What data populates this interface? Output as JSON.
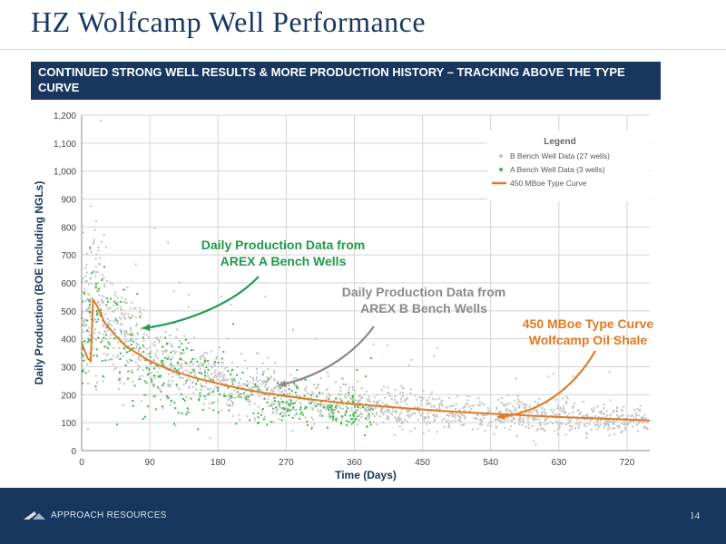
{
  "slide": {
    "title": "HZ Wolfcamp Well Performance",
    "subtitle": "CONTINUED STRONG WELL RESULTS & MORE PRODUCTION HISTORY – TRACKING ABOVE THE TYPE CURVE",
    "company": "APPROACH RESOURCES",
    "page_number": "14"
  },
  "colors": {
    "brand_navy": "#17375e",
    "b_bench": "#c3c3c3",
    "a_bench": "#3cb84a",
    "type_curve": "#e07a26",
    "label_green": "#1f9a4b",
    "label_gray": "#8a8a8a",
    "label_orange": "#e07a26"
  },
  "chart_data": {
    "type": "scatter",
    "xlabel": "Time (Days)",
    "ylabel": "Daily Production (BOE including NGLs)",
    "xlim": [
      0,
      750
    ],
    "ylim": [
      0,
      1200
    ],
    "xticks": [
      0,
      90,
      180,
      270,
      360,
      450,
      540,
      630,
      720
    ],
    "yticks": [
      0,
      100,
      200,
      300,
      400,
      500,
      600,
      700,
      800,
      900,
      1000,
      1100,
      1200
    ],
    "ytick_labels": [
      "0",
      "100",
      "200",
      "300",
      "400",
      "500",
      "600",
      "700",
      "800",
      "900",
      "1,000",
      "1,100",
      "1,200"
    ],
    "grid": true,
    "legend": {
      "title": "Legend",
      "position": "top-right",
      "items": [
        "B Bench Well Data (27 wells)",
        "A Bench Well Data (3 wells)",
        "450 MBoe Type Curve"
      ]
    },
    "series": [
      {
        "name": "B Bench Well Data (27 wells)",
        "kind": "scatter",
        "trend": [
          [
            0,
            470
          ],
          [
            15,
            560
          ],
          [
            30,
            500
          ],
          [
            60,
            400
          ],
          [
            90,
            330
          ],
          [
            120,
            290
          ],
          [
            150,
            270
          ],
          [
            180,
            250
          ],
          [
            210,
            230
          ],
          [
            240,
            215
          ],
          [
            270,
            200
          ],
          [
            300,
            185
          ],
          [
            330,
            175
          ],
          [
            360,
            165
          ],
          [
            420,
            150
          ],
          [
            480,
            140
          ],
          [
            540,
            130
          ],
          [
            600,
            125
          ],
          [
            660,
            118
          ],
          [
            720,
            112
          ],
          [
            750,
            108
          ]
        ]
      },
      {
        "name": "A Bench Well Data (3 wells)",
        "kind": "scatter",
        "trend": [
          [
            0,
            330
          ],
          [
            10,
            450
          ],
          [
            30,
            440
          ],
          [
            60,
            380
          ],
          [
            90,
            300
          ],
          [
            120,
            270
          ],
          [
            150,
            250
          ],
          [
            180,
            240
          ],
          [
            210,
            215
          ],
          [
            240,
            200
          ],
          [
            270,
            180
          ],
          [
            300,
            165
          ],
          [
            330,
            150
          ],
          [
            380,
            140
          ]
        ]
      },
      {
        "name": "450 MBoe Type Curve",
        "kind": "line",
        "points": [
          [
            0,
            385
          ],
          [
            8,
            330
          ],
          [
            12,
            320
          ],
          [
            15,
            540
          ],
          [
            20,
            520
          ],
          [
            30,
            460
          ],
          [
            45,
            410
          ],
          [
            60,
            370
          ],
          [
            90,
            320
          ],
          [
            120,
            285
          ],
          [
            150,
            260
          ],
          [
            180,
            240
          ],
          [
            210,
            222
          ],
          [
            240,
            207
          ],
          [
            270,
            195
          ],
          [
            300,
            184
          ],
          [
            360,
            166
          ],
          [
            420,
            153
          ],
          [
            480,
            141
          ],
          [
            540,
            132
          ],
          [
            600,
            124
          ],
          [
            660,
            117
          ],
          [
            720,
            111
          ],
          [
            750,
            108
          ]
        ]
      }
    ],
    "annotations": [
      {
        "lines": [
          "Daily Production Data from",
          "AREX A Bench Wells"
        ],
        "color_key": "label_green",
        "target": [
          80,
          430
        ]
      },
      {
        "lines": [
          "Daily Production Data from",
          "AREX B Bench Wells"
        ],
        "color_key": "label_gray",
        "target": [
          265,
          225
        ]
      },
      {
        "lines": [
          "450 MBoe Type Curve",
          "Wolfcamp Oil Shale"
        ],
        "color_key": "label_orange",
        "target": [
          545,
          130
        ]
      }
    ]
  }
}
